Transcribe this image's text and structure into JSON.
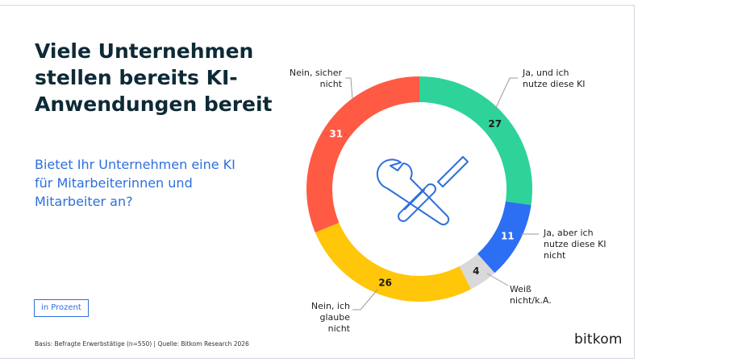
{
  "title": "Viele Unternehmen stellen bereits KI-Anwendungen bereit",
  "subtitle": "Bietet Ihr Unternehmen eine KI für Mitarbeiterinnen und Mitarbeiter an?",
  "unit_note": "in Prozent",
  "footnote": "Basis: Befragte Erwerbstätige (n=550) | Quelle: Bitkom Research 2026",
  "logo_text": "bitkom",
  "icon": "wrench-screwdriver-icon",
  "chart_data": {
    "type": "pie",
    "donut": true,
    "categories": [
      "Ja, und ich nutze diese KI",
      "Ja, aber ich nutze diese KI nicht",
      "Weiß nicht/k.A.",
      "Nein, ich glaube nicht",
      "Nein, sicher nicht"
    ],
    "values": [
      27,
      11,
      4,
      26,
      31
    ],
    "colors": [
      "#2ed39a",
      "#2d6ff2",
      "#d9d9d9",
      "#ffc60a",
      "#ff5a44"
    ],
    "value_label_colors": [
      "#1a1a1a",
      "#ffffff",
      "#1a1a1a",
      "#1a1a1a",
      "#ffffff"
    ]
  }
}
